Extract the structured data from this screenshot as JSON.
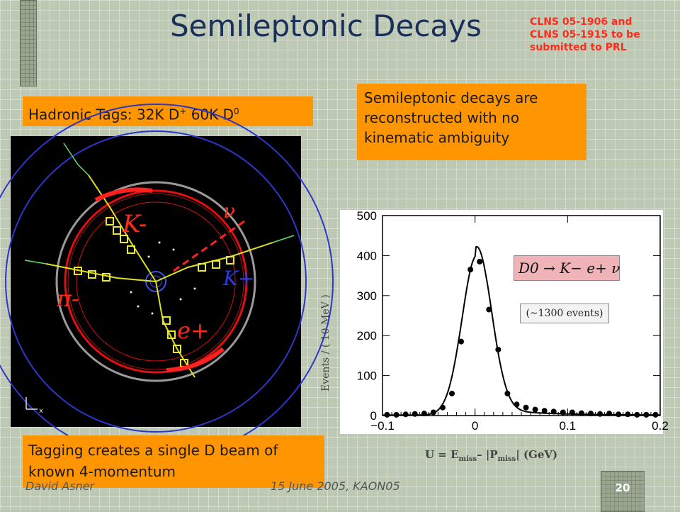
{
  "slide": {
    "title": "Semileptonic Decays",
    "note_lines": [
      "CLNS 05-1906 and",
      "CLNS 05-1915 to be",
      "submitted to PRL"
    ],
    "tags_prefix": "Hadronic Tags: 32K D",
    "tags_sup1": "+",
    "tags_middle": " 60K D",
    "tags_sup2": "0",
    "semi_text": "Semileptonic decays are reconstructed with no kinematic ambiguity",
    "tagging_text": "Tagging creates a single D beam of known 4-momentum",
    "footer_author": "David Asner",
    "footer_date": "15 June 2005, KAON05",
    "page_number": "20"
  },
  "event_display": {
    "labels": [
      "K-",
      "ν",
      "K+",
      "π-",
      "e+"
    ],
    "axis_x": "x"
  },
  "plot": {
    "ylabel": "Events / ( 10 MeV )",
    "xlabel_prefix": "U = E",
    "xlabel_sub1": "miss",
    "xlabel_mid": "– |P",
    "xlabel_sub2": "miss",
    "xlabel_suffix": "| (GeV)",
    "decay_label": "D0 → K− e+ ν",
    "events_label": "(~1300 events)"
  },
  "chart_data": {
    "type": "scatter",
    "title": "",
    "xlabel": "U = Emiss – |Pmiss| (GeV)",
    "ylabel": "Events / ( 10 MeV )",
    "xlim": [
      -0.1,
      0.2
    ],
    "ylim": [
      0,
      500
    ],
    "x_ticks": [
      "−0.1",
      "0",
      "0.1",
      "0.2"
    ],
    "y_ticks": [
      "0",
      "100",
      "200",
      "300",
      "400",
      "500"
    ],
    "series": [
      {
        "values": [
          [
            -0.095,
            2
          ],
          [
            -0.085,
            2
          ],
          [
            -0.075,
            3
          ],
          [
            -0.065,
            4
          ],
          [
            -0.055,
            5
          ],
          [
            -0.045,
            8
          ],
          [
            -0.035,
            20
          ],
          [
            -0.025,
            55
          ],
          [
            -0.015,
            185
          ],
          [
            -0.005,
            365
          ],
          [
            0.005,
            385
          ],
          [
            0.015,
            265
          ],
          [
            0.025,
            165
          ],
          [
            0.035,
            55
          ],
          [
            0.045,
            28
          ],
          [
            0.055,
            20
          ],
          [
            0.065,
            15
          ],
          [
            0.075,
            12
          ],
          [
            0.085,
            10
          ],
          [
            0.095,
            8
          ],
          [
            0.105,
            8
          ],
          [
            0.115,
            6
          ],
          [
            0.125,
            5
          ],
          [
            0.135,
            4
          ],
          [
            0.145,
            5
          ],
          [
            0.155,
            3
          ],
          [
            0.165,
            3
          ],
          [
            0.175,
            2
          ],
          [
            0.185,
            2
          ],
          [
            0.195,
            2
          ]
        ]
      }
    ]
  }
}
